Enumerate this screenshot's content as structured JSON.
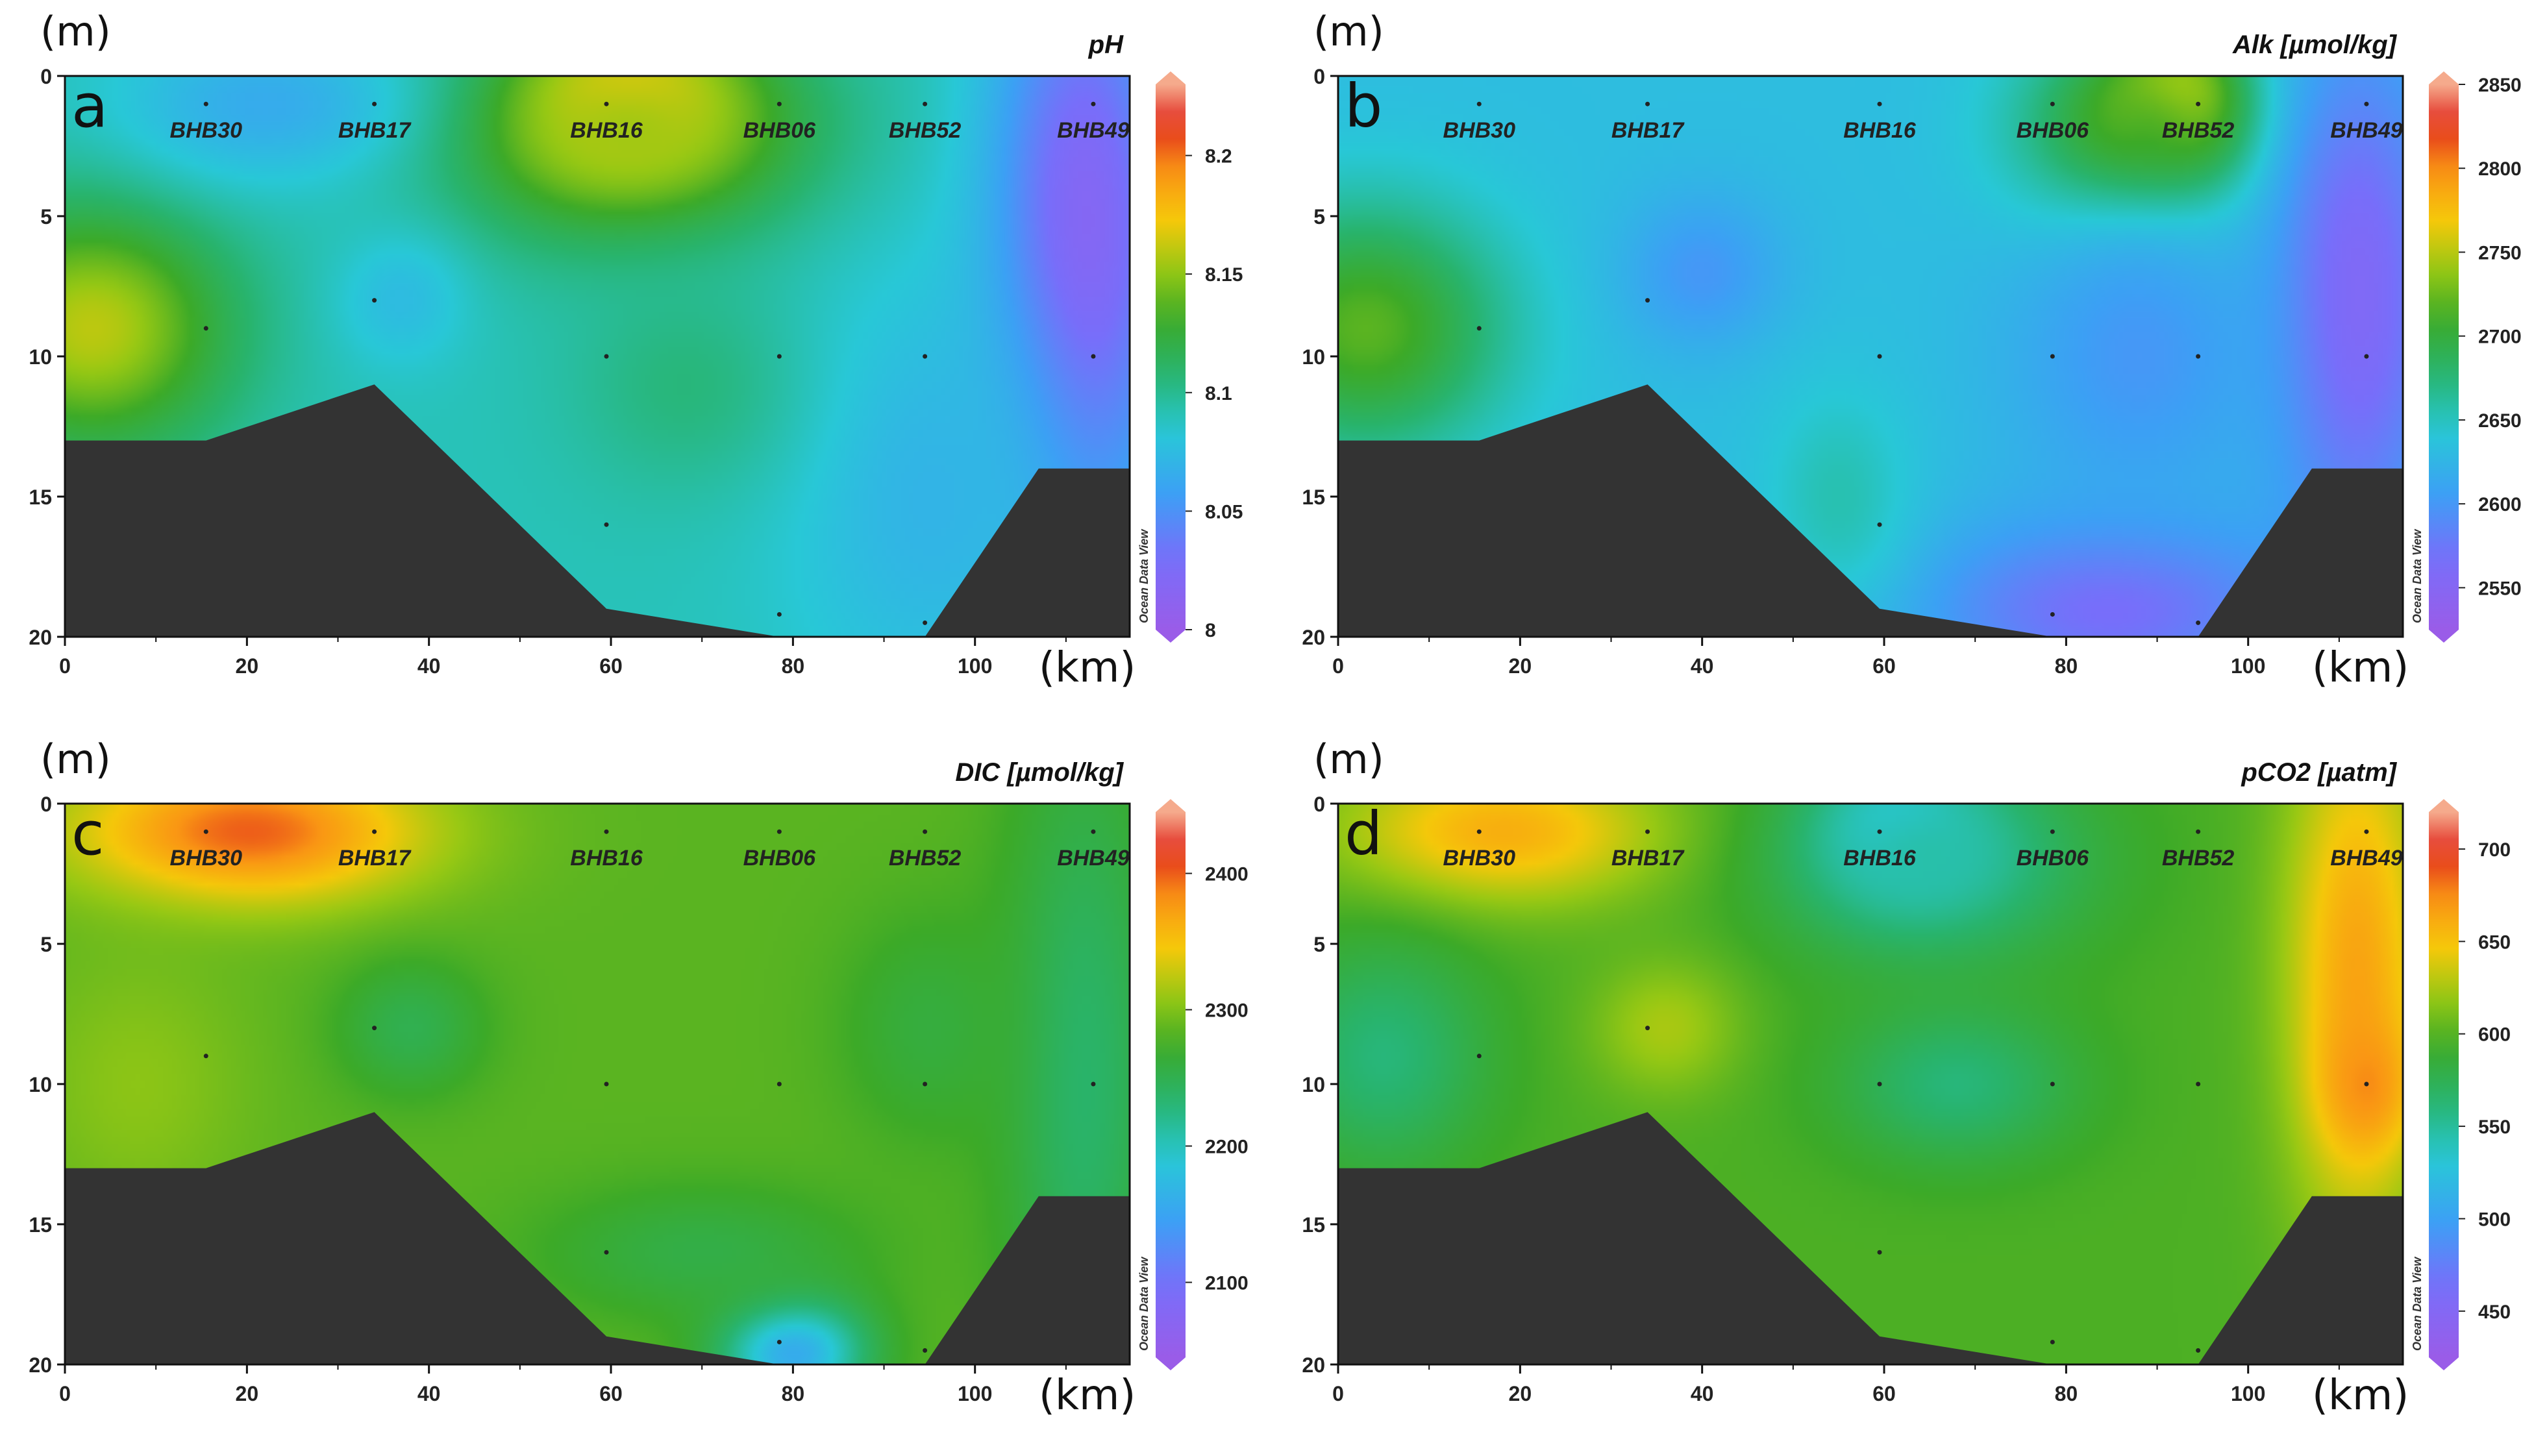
{
  "figure": {
    "y_unit": "(m)",
    "x_unit": "(km)",
    "watermark": "Ocean Data View"
  },
  "chart_data": [
    {
      "type": "heatmap",
      "letter": "a",
      "title": "pH",
      "x_ticks": [
        "0",
        "20",
        "40",
        "60",
        "80",
        "100"
      ],
      "y_ticks": [
        "0",
        "5",
        "10",
        "15",
        "20"
      ],
      "xlim": [
        0,
        117
      ],
      "ylim": [
        20,
        0
      ],
      "stations": [
        {
          "name": "BHB30",
          "x": 15.5
        },
        {
          "name": "BHB17",
          "x": 34
        },
        {
          "name": "BHB16",
          "x": 59.5
        },
        {
          "name": "BHB06",
          "x": 78.5
        },
        {
          "name": "BHB52",
          "x": 94.5
        },
        {
          "name": "BHB49",
          "x": 113
        }
      ],
      "sample_points": [
        {
          "x": 15.5,
          "y": 1
        },
        {
          "x": 34,
          "y": 1
        },
        {
          "x": 59.5,
          "y": 1
        },
        {
          "x": 78.5,
          "y": 1
        },
        {
          "x": 94.5,
          "y": 1
        },
        {
          "x": 113,
          "y": 1
        },
        {
          "x": 15.5,
          "y": 9
        },
        {
          "x": 34,
          "y": 8
        },
        {
          "x": 59.5,
          "y": 10
        },
        {
          "x": 78.5,
          "y": 10
        },
        {
          "x": 94.5,
          "y": 10
        },
        {
          "x": 113,
          "y": 10
        },
        {
          "x": 59.5,
          "y": 16
        },
        {
          "x": 78.5,
          "y": 19.2
        },
        {
          "x": 94.5,
          "y": 19.5
        }
      ],
      "colorbar": {
        "min": 8.0,
        "max": 8.23,
        "ticks": [
          "8",
          "8.05",
          "8.1",
          "8.15",
          "8.2"
        ],
        "tick_values": [
          8.0,
          8.05,
          8.1,
          8.15,
          8.2
        ]
      },
      "bathymetry_depth": [
        [
          0,
          13
        ],
        [
          15.5,
          13
        ],
        [
          34,
          11
        ],
        [
          59.5,
          19
        ],
        [
          78.5,
          20
        ],
        [
          94.5,
          20
        ],
        [
          107,
          14
        ],
        [
          117,
          14
        ]
      ],
      "field": {
        "background": 8.09,
        "features": [
          {
            "x": 62,
            "y": 1,
            "rx": 14,
            "ry": 3.2,
            "v": 8.21
          },
          {
            "x": 62,
            "y": 2,
            "rx": 25,
            "ry": 5,
            "v": 8.155
          },
          {
            "x": 3,
            "y": 9,
            "rx": 19,
            "ry": 5.5,
            "v": 8.16
          },
          {
            "x": 22,
            "y": 1,
            "rx": 20,
            "ry": 3.5,
            "v": 8.065
          },
          {
            "x": 37,
            "y": 8,
            "rx": 9,
            "ry": 3,
            "v": 8.075
          },
          {
            "x": 112,
            "y": 6,
            "rx": 13,
            "ry": 14,
            "v": 8.015
          },
          {
            "x": 95,
            "y": 15,
            "rx": 20,
            "ry": 10,
            "v": 8.07
          },
          {
            "x": 68,
            "y": 11,
            "rx": 16,
            "ry": 5,
            "v": 8.105
          }
        ]
      }
    },
    {
      "type": "heatmap",
      "letter": "b",
      "title": "Alk [µmol/kg]",
      "x_ticks": [
        "0",
        "20",
        "40",
        "60",
        "80",
        "100"
      ],
      "y_ticks": [
        "0",
        "5",
        "10",
        "15",
        "20"
      ],
      "xlim": [
        0,
        117
      ],
      "ylim": [
        20,
        0
      ],
      "stations": [
        {
          "name": "BHB30",
          "x": 15.5
        },
        {
          "name": "BHB17",
          "x": 34
        },
        {
          "name": "BHB16",
          "x": 59.5
        },
        {
          "name": "BHB06",
          "x": 78.5
        },
        {
          "name": "BHB52",
          "x": 94.5
        },
        {
          "name": "BHB49",
          "x": 113
        }
      ],
      "sample_points": [
        {
          "x": 15.5,
          "y": 1
        },
        {
          "x": 34,
          "y": 1
        },
        {
          "x": 59.5,
          "y": 1
        },
        {
          "x": 78.5,
          "y": 1
        },
        {
          "x": 94.5,
          "y": 1
        },
        {
          "x": 113,
          "y": 1
        },
        {
          "x": 15.5,
          "y": 9
        },
        {
          "x": 34,
          "y": 8
        },
        {
          "x": 59.5,
          "y": 10
        },
        {
          "x": 78.5,
          "y": 10
        },
        {
          "x": 94.5,
          "y": 10
        },
        {
          "x": 113,
          "y": 10
        },
        {
          "x": 59.5,
          "y": 16
        },
        {
          "x": 78.5,
          "y": 19.2
        },
        {
          "x": 94.5,
          "y": 19.5
        }
      ],
      "colorbar": {
        "min": 2525,
        "max": 2850,
        "ticks": [
          "2550",
          "2600",
          "2650",
          "2700",
          "2750",
          "2800",
          "2850"
        ],
        "tick_values": [
          2550,
          2600,
          2650,
          2700,
          2750,
          2800,
          2850
        ]
      },
      "bathymetry_depth": [
        [
          0,
          13
        ],
        [
          15.5,
          13
        ],
        [
          34,
          11
        ],
        [
          59.5,
          19
        ],
        [
          78.5,
          20
        ],
        [
          94.5,
          20
        ],
        [
          107,
          14
        ],
        [
          117,
          14
        ]
      ],
      "field": {
        "background": 2632,
        "features": [
          {
            "x": 92,
            "y": 1,
            "rx": 9,
            "ry": 3,
            "v": 2795
          },
          {
            "x": 88,
            "y": 2,
            "rx": 16,
            "ry": 4.5,
            "v": 2730
          },
          {
            "x": 3,
            "y": 9,
            "rx": 19,
            "ry": 5.5,
            "v": 2720
          },
          {
            "x": 40,
            "y": 7,
            "rx": 11,
            "ry": 3.5,
            "v": 2600
          },
          {
            "x": 112,
            "y": 8,
            "rx": 12,
            "ry": 12,
            "v": 2555
          },
          {
            "x": 85,
            "y": 19,
            "rx": 26,
            "ry": 4,
            "v": 2565
          },
          {
            "x": 88,
            "y": 10,
            "rx": 18,
            "ry": 7,
            "v": 2600
          },
          {
            "x": 55,
            "y": 15,
            "rx": 10,
            "ry": 5,
            "v": 2655
          }
        ]
      }
    },
    {
      "type": "heatmap",
      "letter": "c",
      "title": "DIC [µmol/kg]",
      "x_ticks": [
        "0",
        "20",
        "40",
        "60",
        "80",
        "100"
      ],
      "y_ticks": [
        "0",
        "5",
        "10",
        "15",
        "20"
      ],
      "xlim": [
        0,
        117
      ],
      "ylim": [
        20,
        0
      ],
      "stations": [
        {
          "name": "BHB30",
          "x": 15.5
        },
        {
          "name": "BHB17",
          "x": 34
        },
        {
          "name": "BHB16",
          "x": 59.5
        },
        {
          "name": "BHB06",
          "x": 78.5
        },
        {
          "name": "BHB52",
          "x": 94.5
        },
        {
          "name": "BHB49",
          "x": 113
        }
      ],
      "sample_points": [
        {
          "x": 15.5,
          "y": 1
        },
        {
          "x": 34,
          "y": 1
        },
        {
          "x": 59.5,
          "y": 1
        },
        {
          "x": 78.5,
          "y": 1
        },
        {
          "x": 94.5,
          "y": 1
        },
        {
          "x": 113,
          "y": 1
        },
        {
          "x": 15.5,
          "y": 9
        },
        {
          "x": 34,
          "y": 8
        },
        {
          "x": 59.5,
          "y": 10
        },
        {
          "x": 78.5,
          "y": 10
        },
        {
          "x": 94.5,
          "y": 10
        },
        {
          "x": 113,
          "y": 10
        },
        {
          "x": 59.5,
          "y": 16
        },
        {
          "x": 78.5,
          "y": 19.2
        },
        {
          "x": 94.5,
          "y": 19.5
        }
      ],
      "colorbar": {
        "min": 2045,
        "max": 2445,
        "ticks": [
          "2100",
          "2200",
          "2300",
          "2400"
        ],
        "tick_values": [
          2100,
          2200,
          2300,
          2400
        ]
      },
      "bathymetry_depth": [
        [
          0,
          13
        ],
        [
          15.5,
          13
        ],
        [
          34,
          11
        ],
        [
          59.5,
          19
        ],
        [
          78.5,
          20
        ],
        [
          94.5,
          20
        ],
        [
          107,
          14
        ],
        [
          117,
          14
        ]
      ],
      "field": {
        "background": 2285,
        "features": [
          {
            "x": 20,
            "y": 1,
            "rx": 24,
            "ry": 3.2,
            "v": 2400
          },
          {
            "x": 8,
            "y": 10,
            "rx": 15,
            "ry": 6,
            "v": 2305
          },
          {
            "x": 38,
            "y": 8,
            "rx": 10,
            "ry": 3,
            "v": 2250
          },
          {
            "x": 112,
            "y": 10,
            "rx": 11,
            "ry": 16,
            "v": 2235
          },
          {
            "x": 80,
            "y": 19.5,
            "rx": 10,
            "ry": 2.5,
            "v": 2150
          },
          {
            "x": 95,
            "y": 8,
            "rx": 12,
            "ry": 5,
            "v": 2260
          },
          {
            "x": 70,
            "y": 16,
            "rx": 22,
            "ry": 3,
            "v": 2255
          }
        ]
      }
    },
    {
      "type": "heatmap",
      "letter": "d",
      "title": "pCO2 [µatm]",
      "x_ticks": [
        "0",
        "20",
        "40",
        "60",
        "80",
        "100"
      ],
      "y_ticks": [
        "0",
        "5",
        "10",
        "15",
        "20"
      ],
      "xlim": [
        0,
        117
      ],
      "ylim": [
        20,
        0
      ],
      "stations": [
        {
          "name": "BHB30",
          "x": 15.5
        },
        {
          "name": "BHB17",
          "x": 34
        },
        {
          "name": "BHB16",
          "x": 59.5
        },
        {
          "name": "BHB06",
          "x": 78.5
        },
        {
          "name": "BHB52",
          "x": 94.5
        },
        {
          "name": "BHB49",
          "x": 113
        }
      ],
      "sample_points": [
        {
          "x": 15.5,
          "y": 1
        },
        {
          "x": 34,
          "y": 1
        },
        {
          "x": 59.5,
          "y": 1
        },
        {
          "x": 78.5,
          "y": 1
        },
        {
          "x": 94.5,
          "y": 1
        },
        {
          "x": 113,
          "y": 1
        },
        {
          "x": 15.5,
          "y": 9
        },
        {
          "x": 34,
          "y": 8
        },
        {
          "x": 59.5,
          "y": 10
        },
        {
          "x": 78.5,
          "y": 10
        },
        {
          "x": 94.5,
          "y": 10
        },
        {
          "x": 113,
          "y": 10
        },
        {
          "x": 59.5,
          "y": 16
        },
        {
          "x": 78.5,
          "y": 19.2
        },
        {
          "x": 94.5,
          "y": 19.5
        }
      ],
      "colorbar": {
        "min": 425,
        "max": 720,
        "ticks": [
          "450",
          "500",
          "550",
          "600",
          "650",
          "700"
        ],
        "tick_values": [
          450,
          500,
          550,
          600,
          650,
          700
        ]
      },
      "bathymetry_depth": [
        [
          0,
          13
        ],
        [
          15.5,
          13
        ],
        [
          34,
          11
        ],
        [
          59.5,
          19
        ],
        [
          78.5,
          20
        ],
        [
          94.5,
          20
        ],
        [
          107,
          14
        ],
        [
          117,
          14
        ]
      ],
      "field": {
        "background": 598,
        "features": [
          {
            "x": 18,
            "y": 1,
            "rx": 22,
            "ry": 3.2,
            "v": 660
          },
          {
            "x": 62,
            "y": 1,
            "rx": 11,
            "ry": 3,
            "v": 505
          },
          {
            "x": 65,
            "y": 2,
            "rx": 21,
            "ry": 4.5,
            "v": 545
          },
          {
            "x": 5,
            "y": 9,
            "rx": 14,
            "ry": 5,
            "v": 560
          },
          {
            "x": 36,
            "y": 8,
            "rx": 10,
            "ry": 3,
            "v": 625
          },
          {
            "x": 68,
            "y": 10,
            "rx": 16,
            "ry": 3.5,
            "v": 560
          },
          {
            "x": 112,
            "y": 6,
            "rx": 10,
            "ry": 12,
            "v": 665
          },
          {
            "x": 113,
            "y": 10,
            "rx": 6,
            "ry": 3,
            "v": 675
          }
        ]
      }
    }
  ]
}
